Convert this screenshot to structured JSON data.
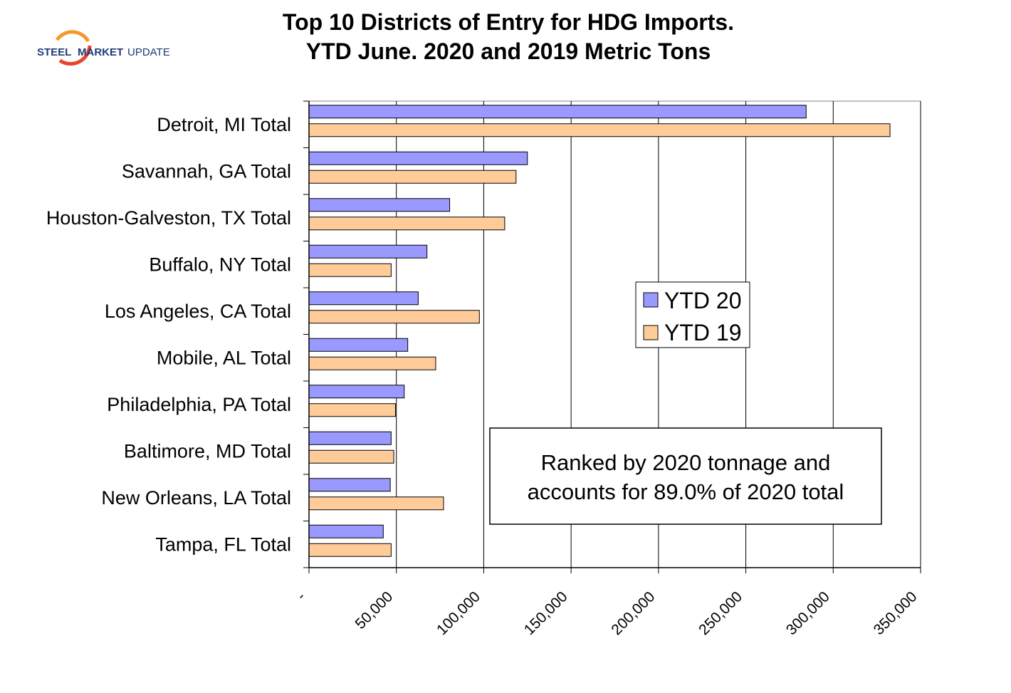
{
  "logo": {
    "word1": "STEEL",
    "word2": "MARKET",
    "word3": "UPDATE"
  },
  "chart_data": {
    "type": "bar",
    "orientation": "horizontal",
    "title": "Top 10 Districts of Entry for HDG Imports.",
    "subtitle": "YTD June. 2020 and 2019 Metric Tons",
    "categories": [
      "Detroit, MI Total",
      "Savannah, GA Total",
      "Houston-Galveston, TX Total",
      "Buffalo, NY Total",
      "Los Angeles, CA Total",
      "Mobile, AL Total",
      "Philadelphia, PA Total",
      "Baltimore, MD Total",
      "New Orleans, LA Total",
      "Tampa, FL Total"
    ],
    "series": [
      {
        "name": "YTD 20",
        "color": "#9999ff",
        "values": [
          284500,
          125000,
          80500,
          67500,
          62500,
          56500,
          54500,
          47000,
          46500,
          42500
        ]
      },
      {
        "name": "YTD 19",
        "color": "#ffcc99",
        "values": [
          332500,
          118500,
          112000,
          47000,
          97500,
          72500,
          49500,
          48500,
          77000,
          47000
        ]
      }
    ],
    "xlim": [
      0,
      350000
    ],
    "x_ticks": [
      0,
      50000,
      100000,
      150000,
      200000,
      250000,
      300000,
      350000
    ],
    "x_tick_labels": [
      "-",
      "50,000",
      "100,000",
      "150,000",
      "200,000",
      "250,000",
      "300,000",
      "350,000"
    ],
    "grid": "vertical",
    "legend_position": "center-right",
    "annotation": {
      "line1": "Ranked by 2020 tonnage and",
      "line2": "accounts for 89.0% of 2020 total"
    }
  }
}
